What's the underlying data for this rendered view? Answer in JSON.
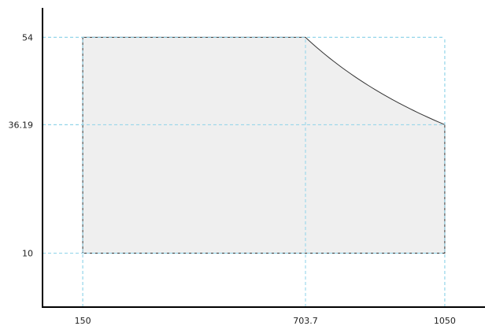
{
  "chart_data": {
    "type": "area",
    "title": "",
    "xlabel": "",
    "ylabel": "",
    "xlim": [
      50,
      1150
    ],
    "ylim": [
      -1,
      60
    ],
    "grid": false,
    "x_ticks": [
      150,
      703.7,
      1050
    ],
    "x_tick_labels": [
      "150",
      "703.7",
      "1050"
    ],
    "y_ticks": [
      10,
      36.19,
      54
    ],
    "y_tick_labels": [
      "10",
      "36.19",
      "54"
    ],
    "region": [
      {
        "x": 150,
        "y": 10
      },
      {
        "x": 150,
        "y": 54
      },
      {
        "x": 703.7,
        "y": 54
      },
      {
        "x": 1050,
        "y": 36.19
      },
      {
        "x": 1050,
        "y": 10
      }
    ],
    "curve": {
      "shape": "hyperbolic",
      "from": {
        "x": 703.7,
        "y": 54
      },
      "to": {
        "x": 1050,
        "y": 36.19
      }
    },
    "reference_lines": {
      "vertical": [
        150,
        703.7,
        1050
      ],
      "horizontal": [
        10,
        36.19,
        54
      ]
    },
    "colors": {
      "fill": "#efefef",
      "outline": "#333333",
      "reference": "#8fd3ea",
      "axis": "#000000"
    }
  }
}
